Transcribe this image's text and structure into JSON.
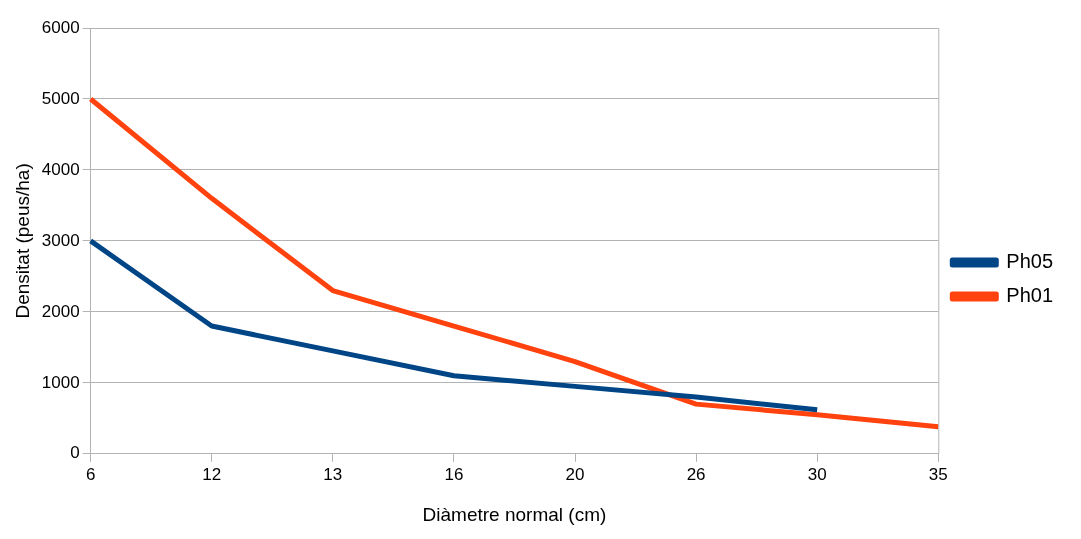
{
  "chart_data": {
    "type": "line",
    "xlabel": "Diàmetre normal (cm)",
    "ylabel": "Densitat (peus/ha)",
    "categories": [
      "6",
      "12",
      "13",
      "16",
      "20",
      "26",
      "30",
      "35"
    ],
    "series": [
      {
        "name": "Ph05",
        "color": "#004586",
        "values": [
          3000,
          1800,
          1450,
          1100,
          950,
          800,
          620,
          null
        ]
      },
      {
        "name": "Ph01",
        "color": "#ff420e",
        "values": [
          5000,
          3600,
          2300,
          1800,
          1300,
          700,
          550,
          380
        ]
      }
    ],
    "ylim": [
      0,
      6000
    ],
    "yticks": [
      0,
      1000,
      2000,
      3000,
      4000,
      5000,
      6000
    ],
    "grid": "y",
    "legend": "right",
    "marker": "none",
    "line_style": "solid"
  }
}
